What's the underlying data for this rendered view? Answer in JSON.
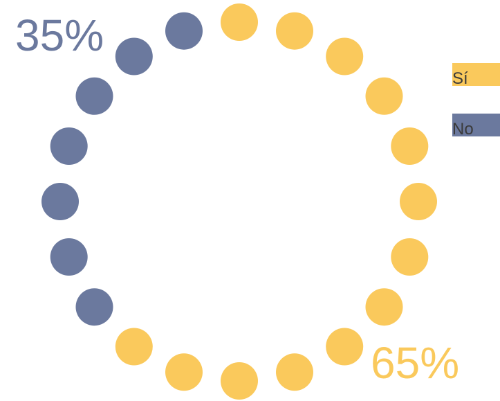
{
  "chart_data": {
    "type": "pie",
    "title": "",
    "labels": [
      "Sí",
      "No"
    ],
    "values": [
      65,
      35
    ],
    "colors": {
      "Sí": "#fac95c",
      "No": "#6b799e"
    },
    "dot_count": 20,
    "percent_labels": {
      "Sí": "65%",
      "No": "35%"
    },
    "legend": [
      {
        "label": "Sí",
        "color": "#fac95c"
      },
      {
        "label": "No",
        "color": "#6b799e"
      }
    ],
    "legend_position": "right"
  }
}
